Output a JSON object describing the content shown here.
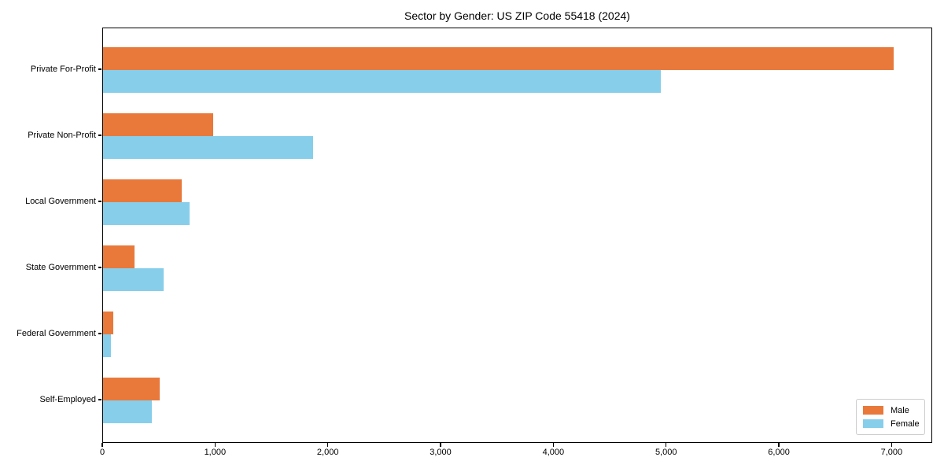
{
  "title": "Sector by Gender: US ZIP Code 55418 (2024)",
  "chart_data": {
    "type": "bar",
    "orientation": "horizontal",
    "title": "Sector by Gender: US ZIP Code 55418 (2024)",
    "categories": [
      "Private For-Profit",
      "Private Non-Profit",
      "Local Government",
      "State Government",
      "Federal Government",
      "Self-Employed"
    ],
    "series": [
      {
        "name": "Male",
        "color": "#e8793b",
        "values": [
          7010,
          975,
          700,
          280,
          88,
          505
        ]
      },
      {
        "name": "Female",
        "color": "#87ceeb",
        "values": [
          4945,
          1865,
          765,
          535,
          68,
          430
        ]
      }
    ],
    "xlim": [
      0,
      7360
    ],
    "xticks": [
      0,
      1000,
      2000,
      3000,
      4000,
      5000,
      6000,
      7000
    ],
    "xtick_labels": [
      "0",
      "1,000",
      "2,000",
      "3,000",
      "4,000",
      "5,000",
      "6,000",
      "7,000"
    ],
    "xlabel": "",
    "ylabel": "",
    "grid": false,
    "legend_position": "lower right"
  },
  "legend": {
    "items": [
      {
        "label": "Male",
        "color": "#e8793b"
      },
      {
        "label": "Female",
        "color": "#87ceeb"
      }
    ]
  }
}
